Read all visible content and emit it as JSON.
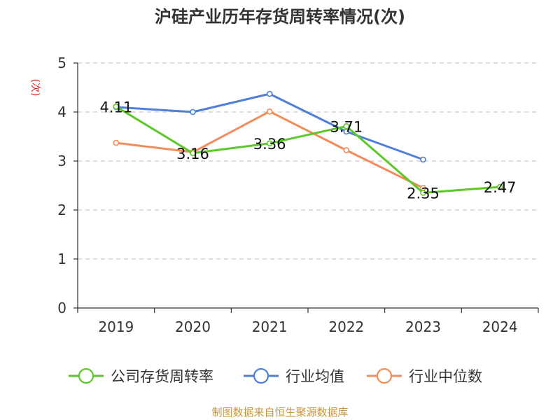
{
  "chart_data": {
    "type": "line",
    "title": "沪硅产业历年存货周转率情况(次)",
    "ylabel": "(次)",
    "xlabel": "",
    "categories": [
      "2019",
      "2020",
      "2021",
      "2022",
      "2023",
      "2024"
    ],
    "ylim": [
      0,
      5
    ],
    "yticks": [
      0,
      1,
      2,
      3,
      4,
      5
    ],
    "grid": "horizontal dashed",
    "legend_position": "bottom",
    "series": [
      {
        "name": "公司存货周转率",
        "color": "#5cc82a",
        "values": [
          4.11,
          3.16,
          3.36,
          3.71,
          2.35,
          2.47
        ],
        "labels": [
          "4.11",
          "3.16",
          "3.36",
          "3.71",
          "2.35",
          "2.47"
        ]
      },
      {
        "name": "行业均值",
        "color": "#4f7fd8",
        "values": [
          4.1,
          4.0,
          4.37,
          3.6,
          3.03,
          null
        ]
      },
      {
        "name": "行业中位数",
        "color": "#f28c5a",
        "values": [
          3.37,
          3.18,
          4.01,
          3.22,
          2.45,
          null
        ]
      }
    ]
  },
  "footer": "制图数据来自恒生聚源数据库"
}
